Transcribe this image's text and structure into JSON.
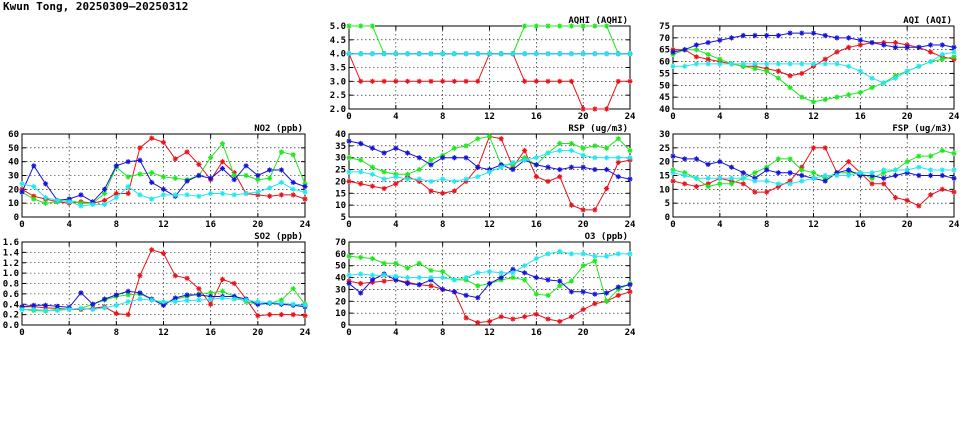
{
  "title": "Kwun Tong, 20250309—20250312",
  "colors": {
    "red": "#e8141c",
    "green": "#1ee81e",
    "blue": "#1414dc",
    "cyan": "#23e6f0"
  },
  "chart_data": [
    {
      "id": "aqhi",
      "type": "line",
      "title": "AQHI (AQHI)",
      "xlim": [
        0,
        24
      ],
      "ylim": [
        2.0,
        5.0
      ],
      "xticks": [
        0,
        4,
        8,
        12,
        16,
        20,
        24
      ],
      "yticks": [
        2.0,
        2.5,
        3.0,
        3.5,
        4.0,
        4.5,
        5.0
      ],
      "ytick_labels": [
        "2.0",
        "2.5",
        "3.0",
        "3.5",
        "4.0",
        "4.5",
        "5.0"
      ],
      "series": [
        {
          "color": "red",
          "values": [
            4,
            3,
            3,
            3,
            3,
            3,
            3,
            3,
            3,
            3,
            3,
            3,
            4,
            4,
            4,
            3,
            3,
            3,
            3,
            3,
            2,
            2,
            2,
            3,
            3
          ]
        },
        {
          "color": "green",
          "values": [
            5,
            5,
            5,
            4,
            4,
            4,
            4,
            4,
            4,
            4,
            4,
            4,
            4,
            4,
            4,
            5,
            5,
            5,
            5,
            5,
            5,
            5,
            5,
            4,
            4
          ]
        },
        {
          "color": "blue",
          "values": [
            4,
            4,
            4,
            4,
            4,
            4,
            4,
            4,
            4,
            4,
            4,
            4,
            4,
            4,
            4,
            4,
            4,
            4,
            4,
            4,
            4,
            4,
            4,
            4,
            4
          ]
        },
        {
          "color": "cyan",
          "values": [
            4,
            4,
            4,
            4,
            4,
            4,
            4,
            4,
            4,
            4,
            4,
            4,
            4,
            4,
            4,
            4,
            4,
            4,
            4,
            4,
            4,
            4,
            4,
            4,
            4
          ]
        }
      ]
    },
    {
      "id": "aqi",
      "type": "line",
      "title": "AQI (AQI)",
      "xlim": [
        0,
        24
      ],
      "ylim": [
        40,
        75
      ],
      "xticks": [
        0,
        4,
        8,
        12,
        16,
        20,
        24
      ],
      "yticks": [
        40,
        45,
        50,
        55,
        60,
        65,
        70,
        75
      ],
      "ytick_labels": [
        "40",
        "45",
        "50",
        "55",
        "60",
        "65",
        "70",
        "75"
      ],
      "series": [
        {
          "color": "red",
          "values": [
            65,
            65,
            62,
            61,
            60,
            59,
            58,
            58,
            57,
            56,
            54,
            55,
            58,
            61,
            64,
            66,
            67,
            68,
            68,
            68,
            67,
            66,
            64,
            62,
            61
          ]
        },
        {
          "color": "green",
          "values": [
            63,
            65,
            65,
            63,
            61,
            59,
            58,
            57,
            56,
            53,
            49,
            45,
            43,
            44,
            45,
            46,
            47,
            49,
            51,
            54,
            56,
            58,
            60,
            61,
            62
          ]
        },
        {
          "color": "blue",
          "values": [
            64,
            65,
            67,
            68,
            69,
            70,
            71,
            71,
            71,
            71,
            72,
            72,
            72,
            71,
            70,
            70,
            69,
            68,
            67,
            66,
            66,
            66,
            67,
            67,
            66
          ]
        },
        {
          "color": "cyan",
          "values": [
            58,
            58,
            59,
            59,
            59,
            59,
            59,
            59,
            59,
            59,
            59,
            59,
            59,
            59,
            59,
            58,
            56,
            53,
            51,
            53,
            56,
            58,
            60,
            63,
            64
          ]
        }
      ]
    },
    {
      "id": "no2",
      "type": "line",
      "title": "NO2 (ppb)",
      "xlim": [
        0,
        24
      ],
      "ylim": [
        0,
        60
      ],
      "xticks": [
        0,
        4,
        8,
        12,
        16,
        20,
        24
      ],
      "yticks": [
        0,
        10,
        20,
        30,
        40,
        50,
        60
      ],
      "ytick_labels": [
        "0",
        "10",
        "20",
        "30",
        "40",
        "50",
        "60"
      ],
      "series": [
        {
          "color": "red",
          "values": [
            20,
            15,
            13,
            11,
            10,
            11,
            10,
            12,
            17,
            17,
            50,
            57,
            54,
            42,
            47,
            38,
            27,
            40,
            32,
            17,
            16,
            15,
            16,
            16,
            13
          ]
        },
        {
          "color": "green",
          "values": [
            18,
            13,
            10,
            11,
            12,
            10,
            10,
            17,
            36,
            29,
            31,
            32,
            29,
            28,
            27,
            30,
            43,
            53,
            30,
            30,
            27,
            28,
            47,
            45,
            24
          ]
        },
        {
          "color": "blue",
          "values": [
            18,
            37,
            24,
            12,
            13,
            16,
            11,
            20,
            37,
            40,
            41,
            25,
            20,
            15,
            26,
            30,
            28,
            35,
            27,
            37,
            30,
            34,
            34,
            25,
            22
          ]
        },
        {
          "color": "cyan",
          "values": [
            24,
            22,
            14,
            12,
            11,
            8,
            9,
            9,
            14,
            22,
            16,
            13,
            16,
            16,
            16,
            15,
            17,
            17,
            16,
            17,
            18,
            21,
            25,
            20,
            18
          ]
        }
      ]
    },
    {
      "id": "rsp",
      "type": "line",
      "title": "RSP (ug/m3)",
      "xlim": [
        0,
        24
      ],
      "ylim": [
        5,
        40
      ],
      "xticks": [
        0,
        4,
        8,
        12,
        16,
        20,
        24
      ],
      "yticks": [
        5,
        10,
        15,
        20,
        25,
        30,
        35,
        40
      ],
      "ytick_labels": [
        "5",
        "10",
        "15",
        "20",
        "25",
        "30",
        "35",
        "40"
      ],
      "series": [
        {
          "color": "red",
          "values": [
            20,
            19,
            18,
            17,
            19,
            22,
            20,
            16,
            15,
            16,
            20,
            26,
            39,
            38,
            26,
            33,
            22,
            20,
            22,
            10,
            8,
            8,
            17,
            28,
            29
          ]
        },
        {
          "color": "green",
          "values": [
            30,
            29,
            26,
            24,
            23,
            23,
            25,
            29,
            31,
            34,
            35,
            38,
            39,
            27,
            27,
            30,
            27,
            32,
            36,
            36,
            34,
            35,
            34,
            38,
            33
          ]
        },
        {
          "color": "blue",
          "values": [
            37,
            36,
            34,
            32,
            34,
            32,
            30,
            27,
            30,
            30,
            30,
            26,
            25,
            27,
            25,
            29,
            27,
            26,
            25,
            26,
            26,
            25,
            25,
            22,
            21
          ]
        },
        {
          "color": "cyan",
          "values": [
            24,
            24,
            23,
            21,
            22,
            21,
            21,
            20,
            21,
            20,
            21,
            22,
            24,
            26,
            28,
            29,
            30,
            32,
            33,
            33,
            31,
            30,
            30,
            30,
            30
          ]
        }
      ]
    },
    {
      "id": "fsp",
      "type": "line",
      "title": "FSP (ug/m3)",
      "xlim": [
        0,
        24
      ],
      "ylim": [
        0,
        30
      ],
      "xticks": [
        0,
        4,
        8,
        12,
        16,
        20,
        24
      ],
      "yticks": [
        0,
        5,
        10,
        15,
        20,
        25,
        30
      ],
      "ytick_labels": [
        "0",
        "5",
        "10",
        "15",
        "20",
        "25",
        "30"
      ],
      "series": [
        {
          "color": "red",
          "values": [
            13,
            12,
            11,
            12,
            14,
            13,
            12,
            9,
            9,
            11,
            13,
            18,
            25,
            25,
            16,
            20,
            16,
            12,
            12,
            7,
            6,
            4,
            8,
            10,
            9
          ]
        },
        {
          "color": "green",
          "values": [
            17,
            16,
            14,
            11,
            12,
            12,
            14,
            16,
            18,
            21,
            21,
            17,
            16,
            14,
            16,
            16,
            16,
            14,
            16,
            17,
            20,
            22,
            22,
            24,
            23
          ]
        },
        {
          "color": "blue",
          "values": [
            22,
            21,
            21,
            19,
            20,
            18,
            16,
            14,
            17,
            16,
            16,
            15,
            14,
            13,
            16,
            17,
            15,
            15,
            14,
            15,
            16,
            15,
            15,
            15,
            14
          ]
        },
        {
          "color": "cyan",
          "values": [
            16,
            15,
            14,
            14,
            14,
            14,
            14,
            13,
            13,
            12,
            12,
            13,
            14,
            15,
            15,
            15,
            16,
            16,
            17,
            17,
            17,
            18,
            17,
            17,
            17
          ]
        }
      ]
    },
    {
      "id": "so2",
      "type": "line",
      "title": "SO2 (ppb)",
      "xlim": [
        0,
        24
      ],
      "ylim": [
        0.0,
        1.6
      ],
      "xticks": [
        0,
        4,
        8,
        12,
        16,
        20,
        24
      ],
      "yticks": [
        0.0,
        0.2,
        0.4,
        0.6,
        0.8,
        1.0,
        1.2,
        1.4,
        1.6
      ],
      "ytick_labels": [
        "0.0",
        "0.2",
        "0.4",
        "0.6",
        "0.8",
        "1.0",
        "1.2",
        "1.4",
        "1.6"
      ],
      "series": [
        {
          "color": "red",
          "values": [
            0.35,
            0.35,
            0.33,
            0.32,
            0.3,
            0.3,
            0.32,
            0.35,
            0.22,
            0.2,
            0.95,
            1.45,
            1.38,
            0.95,
            0.9,
            0.7,
            0.4,
            0.88,
            0.8,
            0.5,
            0.18,
            0.2,
            0.2,
            0.2,
            0.18
          ]
        },
        {
          "color": "green",
          "values": [
            0.3,
            0.28,
            0.27,
            0.3,
            0.3,
            0.32,
            0.4,
            0.48,
            0.55,
            0.58,
            0.6,
            0.5,
            0.42,
            0.5,
            0.55,
            0.6,
            0.62,
            0.65,
            0.55,
            0.45,
            0.4,
            0.42,
            0.48,
            0.7,
            0.4
          ]
        },
        {
          "color": "blue",
          "values": [
            0.35,
            0.38,
            0.38,
            0.36,
            0.34,
            0.62,
            0.4,
            0.5,
            0.58,
            0.65,
            0.62,
            0.5,
            0.38,
            0.52,
            0.58,
            0.58,
            0.55,
            0.55,
            0.55,
            0.5,
            0.4,
            0.42,
            0.4,
            0.38,
            0.35
          ]
        },
        {
          "color": "cyan",
          "values": [
            0.3,
            0.3,
            0.28,
            0.28,
            0.3,
            0.32,
            0.3,
            0.33,
            0.38,
            0.45,
            0.5,
            0.48,
            0.45,
            0.45,
            0.47,
            0.48,
            0.5,
            0.52,
            0.5,
            0.48,
            0.45,
            0.43,
            0.42,
            0.4,
            0.38
          ]
        }
      ]
    },
    {
      "id": "o3",
      "type": "line",
      "title": "O3 (ppb)",
      "xlim": [
        0,
        24
      ],
      "ylim": [
        0,
        70
      ],
      "xticks": [
        0,
        4,
        8,
        12,
        16,
        20,
        24
      ],
      "yticks": [
        0,
        10,
        20,
        30,
        40,
        50,
        60,
        70
      ],
      "ytick_labels": [
        "0",
        "10",
        "20",
        "30",
        "40",
        "50",
        "60",
        "70"
      ],
      "series": [
        {
          "color": "red",
          "values": [
            37,
            35,
            36,
            37,
            38,
            36,
            34,
            33,
            30,
            28,
            6,
            2,
            3,
            7,
            5,
            7,
            9,
            5,
            3,
            7,
            13,
            18,
            20,
            25,
            28
          ]
        },
        {
          "color": "green",
          "values": [
            58,
            57,
            56,
            52,
            52,
            48,
            52,
            46,
            45,
            38,
            38,
            33,
            35,
            38,
            40,
            38,
            26,
            25,
            33,
            37,
            50,
            54,
            20,
            30,
            35
          ]
        },
        {
          "color": "blue",
          "values": [
            35,
            27,
            38,
            43,
            38,
            35,
            34,
            38,
            30,
            28,
            25,
            23,
            35,
            40,
            47,
            44,
            40,
            38,
            37,
            28,
            28,
            26,
            27,
            32,
            34
          ]
        },
        {
          "color": "cyan",
          "values": [
            42,
            43,
            42,
            42,
            41,
            40,
            40,
            40,
            40,
            38,
            40,
            44,
            45,
            44,
            44,
            50,
            56,
            60,
            62,
            60,
            60,
            58,
            58,
            60,
            60
          ]
        }
      ]
    }
  ]
}
